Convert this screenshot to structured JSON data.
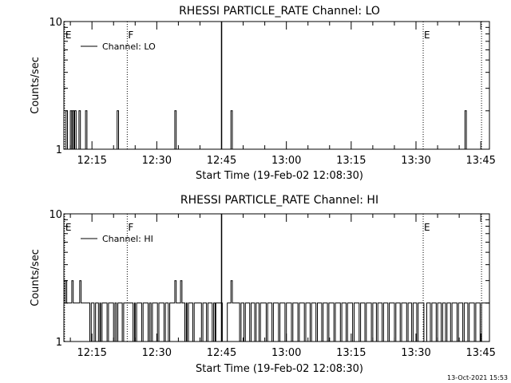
{
  "footer_timestamp": "13-Oct-2021 15:53",
  "chart_data": [
    {
      "type": "line",
      "title": "RHESSI PARTICLE_RATE Channel: LO",
      "xlabel": "Start Time (19-Feb-02 12:08:30)",
      "ylabel": "Counts/sec",
      "y_scale": "log",
      "ylim": [
        1,
        10
      ],
      "y_ticks": [
        {
          "v": 1,
          "label": "1"
        },
        {
          "v": 10,
          "label": "10"
        }
      ],
      "xlim": [
        "12:08:30",
        "13:47:00"
      ],
      "x_ticks": [
        "12:15",
        "12:30",
        "12:45",
        "13:00",
        "13:15",
        "13:30",
        "13:45"
      ],
      "legend_position": "top-left",
      "series": [
        {
          "name": "Channel: LO",
          "points": [
            [
              "12:08:30",
              1
            ],
            [
              "12:09:00",
              2
            ],
            [
              "12:09:20",
              1
            ],
            [
              "12:09:50",
              1
            ],
            [
              "12:10:00",
              2
            ],
            [
              "12:10:20",
              1
            ],
            [
              "12:10:30",
              2
            ],
            [
              "12:10:50",
              1
            ],
            [
              "12:11:00",
              2
            ],
            [
              "12:11:20",
              1
            ],
            [
              "12:11:50",
              1
            ],
            [
              "12:12:00",
              2
            ],
            [
              "12:12:20",
              1
            ],
            [
              "12:13:20",
              1
            ],
            [
              "12:13:30",
              2
            ],
            [
              "12:13:50",
              1
            ],
            [
              "12:20:40",
              1
            ],
            [
              "12:20:50",
              2
            ],
            [
              "12:21:10",
              1
            ],
            [
              "12:34:00",
              1
            ],
            [
              "12:34:10",
              2
            ],
            [
              "12:34:30",
              1
            ],
            [
              "12:47:00",
              1
            ],
            [
              "12:47:10",
              2
            ],
            [
              "12:47:30",
              1
            ],
            [
              "13:41:10",
              1
            ],
            [
              "13:41:20",
              2
            ],
            [
              "13:41:40",
              1
            ],
            [
              "13:47:00",
              1
            ]
          ]
        }
      ],
      "markers": [
        {
          "label": "E",
          "time": "12:08:40",
          "style": "dotted"
        },
        {
          "label": "F",
          "time": "12:23:10",
          "style": "dotted"
        },
        {
          "label": "",
          "time": "12:45:00",
          "style": "solid"
        },
        {
          "label": "E",
          "time": "13:31:40",
          "style": "dotted"
        },
        {
          "label": "",
          "time": "13:45:10",
          "style": "dotted"
        }
      ]
    },
    {
      "type": "line",
      "title": "RHESSI PARTICLE_RATE Channel: HI",
      "xlabel": "Start Time (19-Feb-02 12:08:30)",
      "ylabel": "Counts/sec",
      "y_scale": "log",
      "ylim": [
        1,
        10
      ],
      "y_ticks": [
        {
          "v": 1,
          "label": "1"
        },
        {
          "v": 10,
          "label": "10"
        }
      ],
      "xlim": [
        "12:08:30",
        "13:47:00"
      ],
      "x_ticks": [
        "12:15",
        "12:30",
        "12:45",
        "13:00",
        "13:15",
        "13:30",
        "13:45"
      ],
      "legend_position": "top-left",
      "series": [
        {
          "name": "Channel: HI",
          "points": [
            [
              "12:08:30",
              2
            ],
            [
              "12:08:50",
              3
            ],
            [
              "12:09:10",
              2
            ],
            [
              "12:10:10",
              2
            ],
            [
              "12:10:20",
              3
            ],
            [
              "12:10:40",
              2
            ],
            [
              "12:12:00",
              2
            ],
            [
              "12:12:10",
              3
            ],
            [
              "12:12:30",
              2
            ],
            [
              "12:14:20",
              2
            ],
            [
              "12:14:30",
              1
            ],
            [
              "12:14:50",
              2
            ],
            [
              "12:15:20",
              2
            ],
            [
              "12:15:30",
              1
            ],
            [
              "12:15:50",
              2
            ],
            [
              "12:16:20",
              2
            ],
            [
              "12:16:30",
              1
            ],
            [
              "12:16:50",
              2
            ],
            [
              "12:17:00",
              1
            ],
            [
              "12:17:20",
              2
            ],
            [
              "12:18:20",
              2
            ],
            [
              "12:18:30",
              1
            ],
            [
              "12:18:50",
              2
            ],
            [
              "12:19:50",
              2
            ],
            [
              "12:20:00",
              1
            ],
            [
              "12:20:20",
              2
            ],
            [
              "12:20:40",
              1
            ],
            [
              "12:21:00",
              2
            ],
            [
              "12:21:50",
              2
            ],
            [
              "12:22:00",
              1
            ],
            [
              "12:22:20",
              2
            ],
            [
              "12:24:20",
              2
            ],
            [
              "12:24:30",
              1
            ],
            [
              "12:24:50",
              2
            ],
            [
              "12:25:00",
              1
            ],
            [
              "12:25:20",
              2
            ],
            [
              "12:26:20",
              2
            ],
            [
              "12:26:30",
              1
            ],
            [
              "12:26:50",
              2
            ],
            [
              "12:27:50",
              2
            ],
            [
              "12:28:00",
              1
            ],
            [
              "12:28:20",
              2
            ],
            [
              "12:28:40",
              1
            ],
            [
              "12:29:00",
              2
            ],
            [
              "12:30:00",
              2
            ],
            [
              "12:30:10",
              1
            ],
            [
              "12:30:30",
              2
            ],
            [
              "12:31:30",
              2
            ],
            [
              "12:31:40",
              1
            ],
            [
              "12:32:00",
              2
            ],
            [
              "12:32:30",
              2
            ],
            [
              "12:32:40",
              1
            ],
            [
              "12:33:00",
              2
            ],
            [
              "12:34:00",
              2
            ],
            [
              "12:34:10",
              3
            ],
            [
              "12:34:30",
              2
            ],
            [
              "12:35:20",
              2
            ],
            [
              "12:35:30",
              3
            ],
            [
              "12:35:50",
              2
            ],
            [
              "12:36:20",
              2
            ],
            [
              "12:36:30",
              1
            ],
            [
              "12:36:50",
              2
            ],
            [
              "12:37:00",
              1
            ],
            [
              "12:37:20",
              2
            ],
            [
              "12:38:10",
              2
            ],
            [
              "12:38:20",
              1
            ],
            [
              "12:38:40",
              2
            ],
            [
              "12:40:10",
              2
            ],
            [
              "12:40:20",
              1
            ],
            [
              "12:40:40",
              2
            ],
            [
              "12:41:20",
              2
            ],
            [
              "12:41:30",
              1
            ],
            [
              "12:41:50",
              2
            ],
            [
              "12:42:40",
              2
            ],
            [
              "12:42:50",
              1
            ],
            [
              "12:43:10",
              2
            ],
            [
              "12:43:30",
              1
            ],
            [
              "12:43:40",
              2
            ],
            [
              "12:45:00",
              2
            ],
            [
              "12:45:10",
              1
            ],
            [
              "12:46:10",
              1
            ],
            [
              "12:46:20",
              2
            ],
            [
              "12:47:00",
              2
            ],
            [
              "12:47:10",
              3
            ],
            [
              "12:47:30",
              2
            ],
            [
              "12:49:00",
              2
            ],
            [
              "12:49:10",
              1
            ],
            [
              "12:49:30",
              2
            ],
            [
              "12:50:00",
              2
            ],
            [
              "12:50:10",
              1
            ],
            [
              "12:50:30",
              2
            ],
            [
              "12:51:20",
              2
            ],
            [
              "12:51:30",
              1
            ],
            [
              "12:51:50",
              2
            ],
            [
              "12:52:30",
              2
            ],
            [
              "12:52:40",
              1
            ],
            [
              "12:53:00",
              2
            ],
            [
              "12:53:30",
              2
            ],
            [
              "12:53:40",
              1
            ],
            [
              "12:54:00",
              2
            ],
            [
              "12:55:10",
              2
            ],
            [
              "12:55:20",
              1
            ],
            [
              "12:55:40",
              2
            ],
            [
              "12:56:30",
              2
            ],
            [
              "12:56:40",
              1
            ],
            [
              "12:57:00",
              2
            ],
            [
              "12:58:00",
              2
            ],
            [
              "12:58:10",
              1
            ],
            [
              "12:58:30",
              2
            ],
            [
              "12:59:30",
              2
            ],
            [
              "12:59:40",
              1
            ],
            [
              "13:00:00",
              2
            ],
            [
              "13:01:00",
              2
            ],
            [
              "13:01:10",
              1
            ],
            [
              "13:01:30",
              2
            ],
            [
              "13:02:30",
              2
            ],
            [
              "13:02:40",
              1
            ],
            [
              "13:03:00",
              2
            ],
            [
              "13:04:00",
              2
            ],
            [
              "13:04:10",
              1
            ],
            [
              "13:04:30",
              2
            ],
            [
              "13:05:20",
              2
            ],
            [
              "13:05:30",
              1
            ],
            [
              "13:05:50",
              2
            ],
            [
              "13:06:40",
              2
            ],
            [
              "13:06:50",
              1
            ],
            [
              "13:07:10",
              2
            ],
            [
              "13:08:00",
              2
            ],
            [
              "13:08:10",
              1
            ],
            [
              "13:08:30",
              2
            ],
            [
              "13:09:20",
              2
            ],
            [
              "13:09:30",
              1
            ],
            [
              "13:09:50",
              2
            ],
            [
              "13:10:50",
              2
            ],
            [
              "13:11:00",
              1
            ],
            [
              "13:11:20",
              2
            ],
            [
              "13:12:20",
              2
            ],
            [
              "13:12:30",
              1
            ],
            [
              "13:12:50",
              2
            ],
            [
              "13:13:40",
              2
            ],
            [
              "13:13:50",
              1
            ],
            [
              "13:14:10",
              2
            ],
            [
              "13:15:10",
              2
            ],
            [
              "13:15:20",
              1
            ],
            [
              "13:15:40",
              2
            ],
            [
              "13:16:40",
              2
            ],
            [
              "13:16:50",
              1
            ],
            [
              "13:17:10",
              2
            ],
            [
              "13:18:00",
              2
            ],
            [
              "13:18:10",
              1
            ],
            [
              "13:18:30",
              2
            ],
            [
              "13:19:30",
              2
            ],
            [
              "13:19:40",
              1
            ],
            [
              "13:20:00",
              2
            ],
            [
              "13:20:40",
              2
            ],
            [
              "13:20:50",
              1
            ],
            [
              "13:21:10",
              2
            ],
            [
              "13:22:00",
              2
            ],
            [
              "13:22:10",
              1
            ],
            [
              "13:22:30",
              2
            ],
            [
              "13:23:20",
              2
            ],
            [
              "13:23:30",
              1
            ],
            [
              "13:23:50",
              2
            ],
            [
              "13:24:50",
              2
            ],
            [
              "13:25:00",
              1
            ],
            [
              "13:25:20",
              2
            ],
            [
              "13:26:10",
              2
            ],
            [
              "13:26:20",
              1
            ],
            [
              "13:26:40",
              2
            ],
            [
              "13:27:40",
              2
            ],
            [
              "13:27:50",
              1
            ],
            [
              "13:28:10",
              2
            ],
            [
              "13:28:50",
              2
            ],
            [
              "13:29:00",
              1
            ],
            [
              "13:29:20",
              2
            ],
            [
              "13:30:00",
              2
            ],
            [
              "13:30:10",
              1
            ],
            [
              "13:30:30",
              2
            ],
            [
              "13:31:40",
              2
            ],
            [
              "13:31:50",
              1
            ],
            [
              "13:32:20",
              1
            ],
            [
              "13:32:30",
              2
            ],
            [
              "13:33:10",
              2
            ],
            [
              "13:33:20",
              1
            ],
            [
              "13:33:40",
              2
            ],
            [
              "13:34:30",
              2
            ],
            [
              "13:34:40",
              1
            ],
            [
              "13:35:00",
              2
            ],
            [
              "13:35:40",
              2
            ],
            [
              "13:35:50",
              1
            ],
            [
              "13:36:10",
              2
            ],
            [
              "13:36:40",
              2
            ],
            [
              "13:36:50",
              1
            ],
            [
              "13:37:10",
              2
            ],
            [
              "13:37:50",
              2
            ],
            [
              "13:38:00",
              1
            ],
            [
              "13:38:20",
              2
            ],
            [
              "13:39:20",
              2
            ],
            [
              "13:39:30",
              1
            ],
            [
              "13:39:50",
              2
            ],
            [
              "13:40:40",
              2
            ],
            [
              "13:40:50",
              1
            ],
            [
              "13:41:10",
              2
            ],
            [
              "13:41:50",
              2
            ],
            [
              "13:42:00",
              1
            ],
            [
              "13:42:20",
              2
            ],
            [
              "13:43:20",
              2
            ],
            [
              "13:43:30",
              1
            ],
            [
              "13:43:50",
              2
            ],
            [
              "13:44:40",
              2
            ],
            [
              "13:44:50",
              1
            ],
            [
              "13:45:10",
              2
            ],
            [
              "13:47:00",
              2
            ]
          ]
        }
      ],
      "markers": [
        {
          "label": "E",
          "time": "12:08:40",
          "style": "dotted"
        },
        {
          "label": "F",
          "time": "12:23:10",
          "style": "dotted"
        },
        {
          "label": "",
          "time": "12:45:00",
          "style": "solid"
        },
        {
          "label": "E",
          "time": "13:31:40",
          "style": "dotted"
        },
        {
          "label": "",
          "time": "13:45:10",
          "style": "dotted"
        }
      ]
    }
  ]
}
